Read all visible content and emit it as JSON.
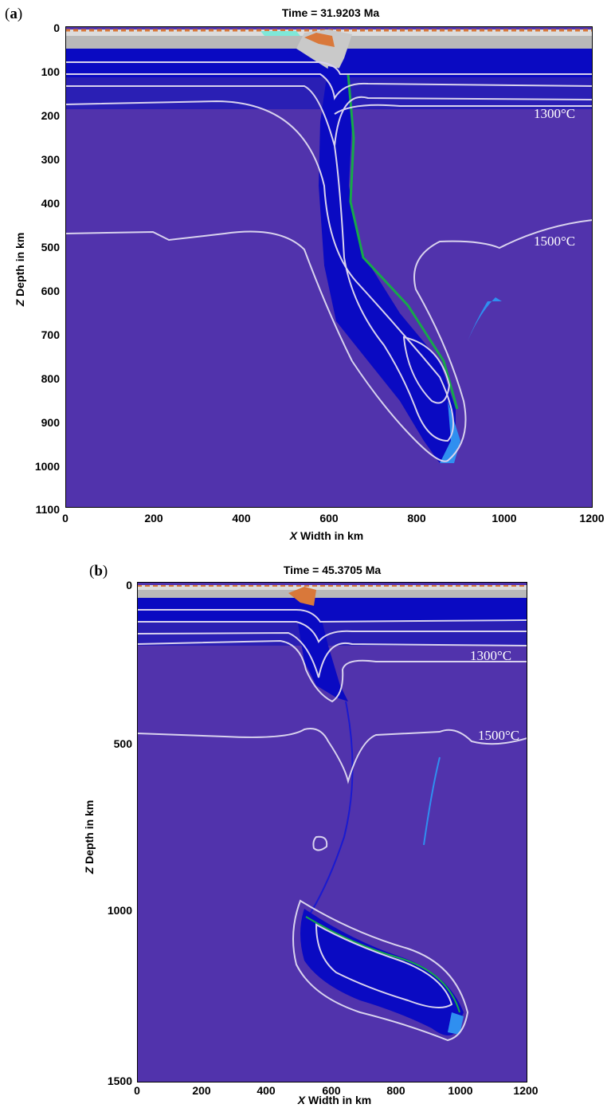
{
  "figure": {
    "panels": [
      {
        "letter_open": "(",
        "letter": "a",
        "letter_close": ")",
        "title": "Time = 31.9203 Ma",
        "xlabel_var": "X",
        "xlabel_rest": " Width in km",
        "ylabel_var": "Z",
        "ylabel_rest": " Depth in km",
        "yticks": [
          "0",
          "100",
          "200",
          "300",
          "400",
          "500",
          "600",
          "700",
          "800",
          "900",
          "1000",
          "1100"
        ],
        "xticks": [
          "0",
          "200",
          "400",
          "600",
          "800",
          "1000",
          "1200"
        ],
        "isotherms": [
          "1300°C",
          "1500°C"
        ]
      },
      {
        "letter_open": "(",
        "letter": "b",
        "letter_close": ")",
        "title": "Time = 45.3705 Ma",
        "xlabel_var": "X",
        "xlabel_rest": " Width in km",
        "ylabel_var": "Z",
        "ylabel_rest": " Depth in km",
        "yticks": [
          "0",
          "500",
          "1000",
          "1500"
        ],
        "xticks": [
          "0",
          "200",
          "400",
          "600",
          "800",
          "1000",
          "1200"
        ],
        "isotherms": [
          "1300°C",
          "1500°C"
        ]
      }
    ],
    "colors": {
      "mantle": "#5133ac",
      "slab": "#0a0ac2",
      "crust_gray": "#b9b9b9",
      "sediment": "#d9783a",
      "oceanic_crust": "#17a84a",
      "weak_zone": "#2f8ff0",
      "isotherm": "#d9d3ee"
    }
  }
}
